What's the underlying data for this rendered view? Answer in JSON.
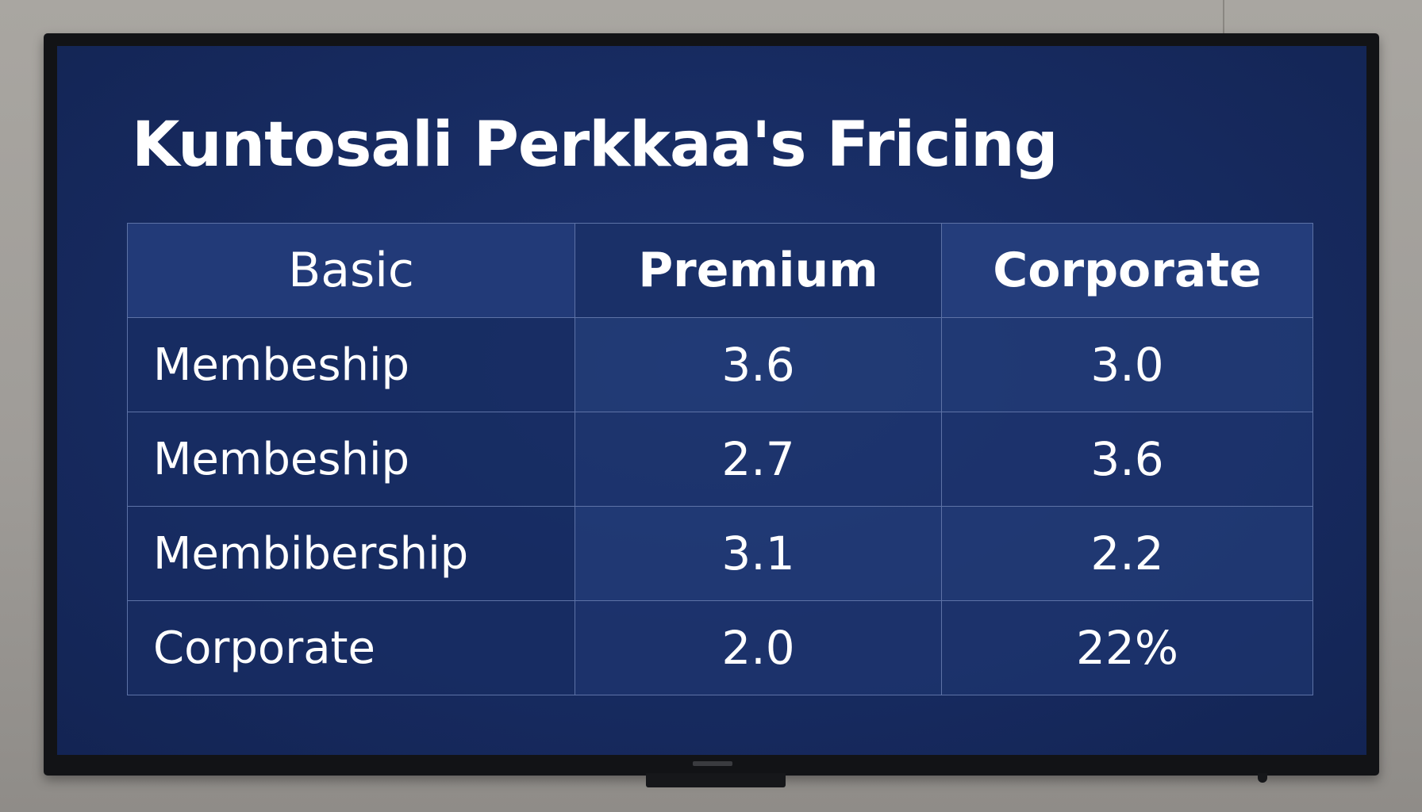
{
  "slide": {
    "title": "Kuntosali Perkkaa's Fricing"
  },
  "table": {
    "headers": [
      "Basic",
      "Premium",
      "Corporate"
    ],
    "rows": [
      {
        "label": "Membeship",
        "values": [
          "3.6",
          "3.0"
        ]
      },
      {
        "label": "Membeship",
        "values": [
          "2.7",
          "3.6"
        ]
      },
      {
        "label": "Membibership",
        "values": [
          "3.1",
          "2.2"
        ]
      },
      {
        "label": "Corporate",
        "values": [
          "2.0",
          "22%"
        ]
      }
    ]
  },
  "colors": {
    "screen": "#172b61",
    "bezel": "#121316",
    "wall": "#a3a09c",
    "text": "#ffffff",
    "grid_lines": "#5d72a6"
  }
}
